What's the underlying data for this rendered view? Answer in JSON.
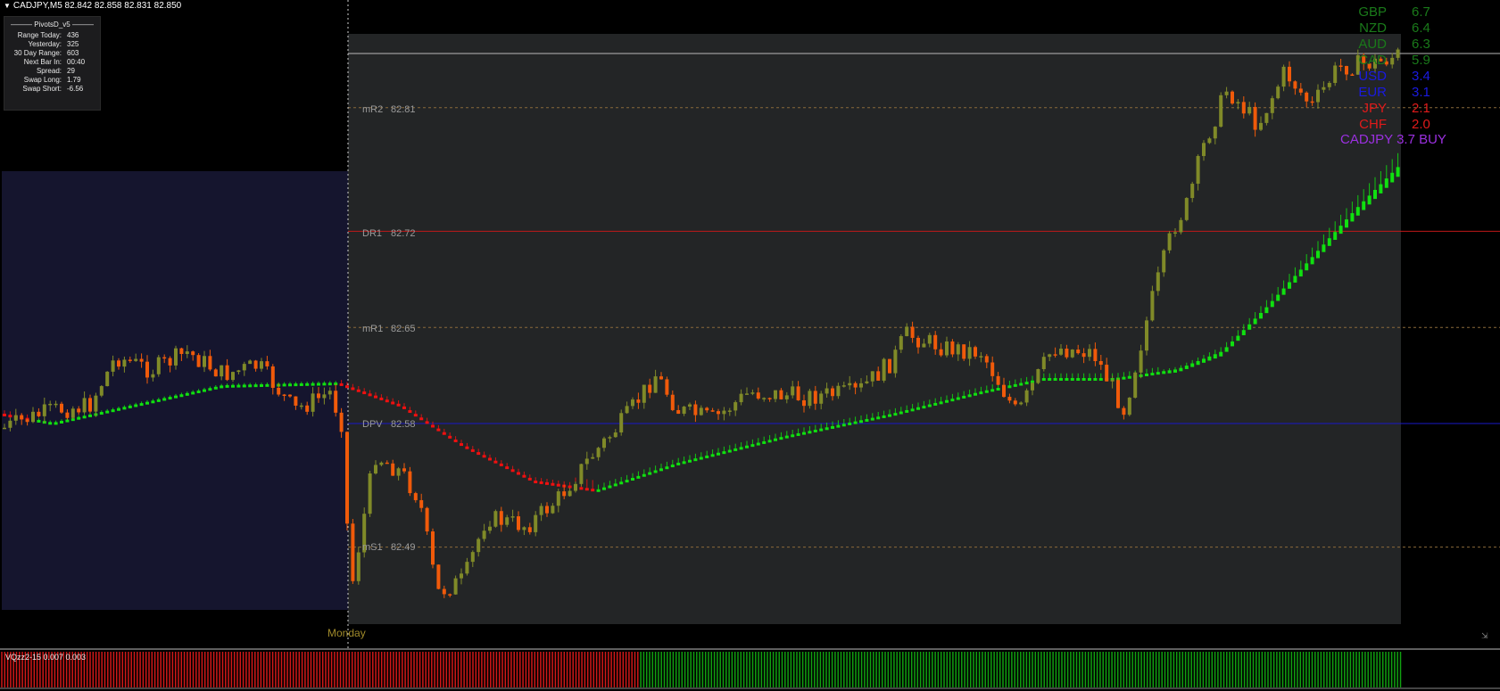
{
  "title": {
    "symbol_line": "CADJPY,M5  82.842 82.858 82.831 82.850",
    "icon": "dropdown-triangle-icon"
  },
  "info_panel": {
    "title": "PivotsD_v5",
    "rows": [
      {
        "label": "Range  Today:",
        "value": "436"
      },
      {
        "label": "Yesterday:",
        "value": "325"
      },
      {
        "label": "30 Day Range:",
        "value": "603"
      },
      {
        "label": "Next Bar In:",
        "value": "00:40"
      },
      {
        "label": "Spread:",
        "value": "29"
      },
      {
        "label": "Swap  Long:",
        "value": "1.79"
      },
      {
        "label": "Swap  Short:",
        "value": "-6.56"
      }
    ]
  },
  "levels": [
    {
      "name": "mR2",
      "value": "82.81",
      "price": 82.81,
      "style": "dotted"
    },
    {
      "name": "DR1",
      "value": "82.72",
      "price": 82.72,
      "style": "solid-red"
    },
    {
      "name": "mR1",
      "value": "82.65",
      "price": 82.65,
      "style": "dotted"
    },
    {
      "name": "DPV",
      "value": "82.58",
      "price": 82.58,
      "style": "solid-blue"
    },
    {
      "name": "mS1",
      "value": "82.49",
      "price": 82.49,
      "style": "dotted"
    }
  ],
  "strength": [
    {
      "currency": "GBP",
      "value": "6.7",
      "color": "#1a7a1a"
    },
    {
      "currency": "NZD",
      "value": "6.4",
      "color": "#1a7a1a"
    },
    {
      "currency": "AUD",
      "value": "6.3",
      "color": "#1a7a1a"
    },
    {
      "currency": "CAD",
      "value": "5.9",
      "color": "#1a7a1a"
    },
    {
      "currency": "USD",
      "value": "3.4",
      "color": "#1a1ae0"
    },
    {
      "currency": "EUR",
      "value": "3.1",
      "color": "#1a1ae0"
    },
    {
      "currency": "JPY",
      "value": "2.1",
      "color": "#e01a1a"
    },
    {
      "currency": "CHF",
      "value": "2.0",
      "color": "#e01a1a"
    }
  ],
  "signal": "CADJPY 3.7 BUY",
  "separator_label": "Monday",
  "indicator_label": "VQzz2-15 0.007 0.003",
  "corner_icon": "autoscroll-icon",
  "colors": {
    "bull": "#808a28",
    "bear": "#f05a0a",
    "ma_up": "#10e010",
    "ma_down": "#f01010",
    "today_zone": "#232526",
    "yesterday_zone": "#15152e"
  }
}
